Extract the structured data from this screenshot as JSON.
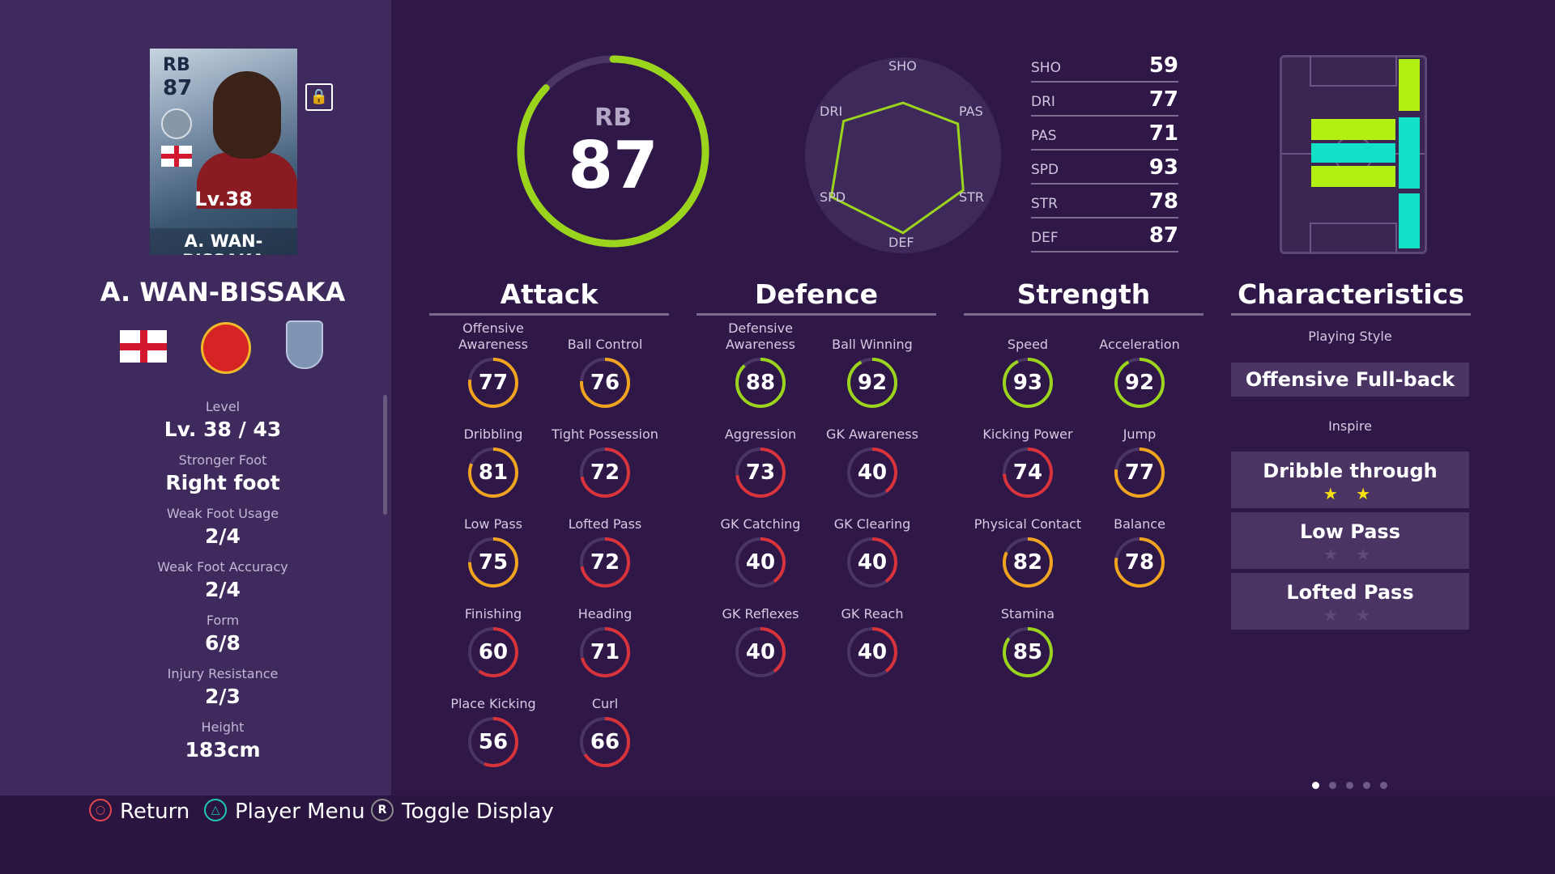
{
  "player": {
    "name": "A. WAN-BISSAKA",
    "card_name": "A. WAN-BISSAKA",
    "position": "RB",
    "overall": "87",
    "card_level": "Lv.38"
  },
  "profile": [
    {
      "label": "Level",
      "value": "Lv. 38 / 43"
    },
    {
      "label": "Stronger Foot",
      "value": "Right foot"
    },
    {
      "label": "Weak Foot Usage",
      "value": "2/4"
    },
    {
      "label": "Weak Foot Accuracy",
      "value": "2/4"
    },
    {
      "label": "Form",
      "value": "6/8"
    },
    {
      "label": "Injury Resistance",
      "value": "2/3"
    },
    {
      "label": "Height",
      "value": "183cm"
    }
  ],
  "overall_ring": {
    "position": "RB",
    "value": "87",
    "fraction": 0.87,
    "color": "#9bd41c"
  },
  "radar": {
    "labels": [
      "SHO",
      "PAS",
      "STR",
      "DEF",
      "SPD",
      "DRI"
    ],
    "values": [
      59,
      71,
      78,
      87,
      93,
      77
    ],
    "color": "#9bd41c"
  },
  "summary": [
    {
      "key": "SHO",
      "value": "59"
    },
    {
      "key": "DRI",
      "value": "77"
    },
    {
      "key": "PAS",
      "value": "71"
    },
    {
      "key": "SPD",
      "value": "93"
    },
    {
      "key": "STR",
      "value": "78"
    },
    {
      "key": "DEF",
      "value": "87"
    }
  ],
  "sections": {
    "attack": {
      "title": "Attack",
      "stats": [
        {
          "label": "Offensive Awareness",
          "value": "77"
        },
        {
          "label": "Ball Control",
          "value": "76"
        },
        {
          "label": "Dribbling",
          "value": "81"
        },
        {
          "label": "Tight Possession",
          "value": "72"
        },
        {
          "label": "Low Pass",
          "value": "75"
        },
        {
          "label": "Lofted Pass",
          "value": "72"
        },
        {
          "label": "Finishing",
          "value": "60"
        },
        {
          "label": "Heading",
          "value": "71"
        },
        {
          "label": "Place Kicking",
          "value": "56"
        },
        {
          "label": "Curl",
          "value": "66"
        }
      ]
    },
    "defence": {
      "title": "Defence",
      "stats": [
        {
          "label": "Defensive Awareness",
          "value": "88"
        },
        {
          "label": "Ball Winning",
          "value": "92"
        },
        {
          "label": "Aggression",
          "value": "73"
        },
        {
          "label": "GK Awareness",
          "value": "40"
        },
        {
          "label": "GK Catching",
          "value": "40"
        },
        {
          "label": "GK Clearing",
          "value": "40"
        },
        {
          "label": "GK Reflexes",
          "value": "40"
        },
        {
          "label": "GK Reach",
          "value": "40"
        }
      ]
    },
    "strength": {
      "title": "Strength",
      "stats": [
        {
          "label": "Speed",
          "value": "93"
        },
        {
          "label": "Acceleration",
          "value": "92"
        },
        {
          "label": "Kicking Power",
          "value": "74"
        },
        {
          "label": "Jump",
          "value": "77"
        },
        {
          "label": "Physical Contact",
          "value": "82"
        },
        {
          "label": "Balance",
          "value": "78"
        },
        {
          "label": "Stamina",
          "value": "85"
        }
      ]
    },
    "characteristics": {
      "title": "Characteristics",
      "playing_style_label": "Playing Style",
      "playing_style": "Offensive Full-back",
      "inspire_label": "Inspire",
      "inspire": [
        {
          "name": "Dribble through",
          "stars": "★ ★",
          "filled": true
        },
        {
          "name": "Low Pass",
          "stars": "★ ★",
          "filled": false
        },
        {
          "name": "Lofted Pass",
          "stars": "★ ★",
          "filled": false
        }
      ]
    }
  },
  "rating_colors": {
    "green": "#9bd41c",
    "orange": "#f0a31e",
    "red": "#d8323a"
  },
  "pitch_colors": {
    "primary": "#b2f014",
    "secondary": "#14e0c8"
  },
  "footer": {
    "return_label": "Return",
    "player_menu_label": "Player Menu",
    "toggle_label": "Toggle Display",
    "toggle_glyph": "R"
  },
  "pagination": {
    "total": 5,
    "current": 1
  }
}
